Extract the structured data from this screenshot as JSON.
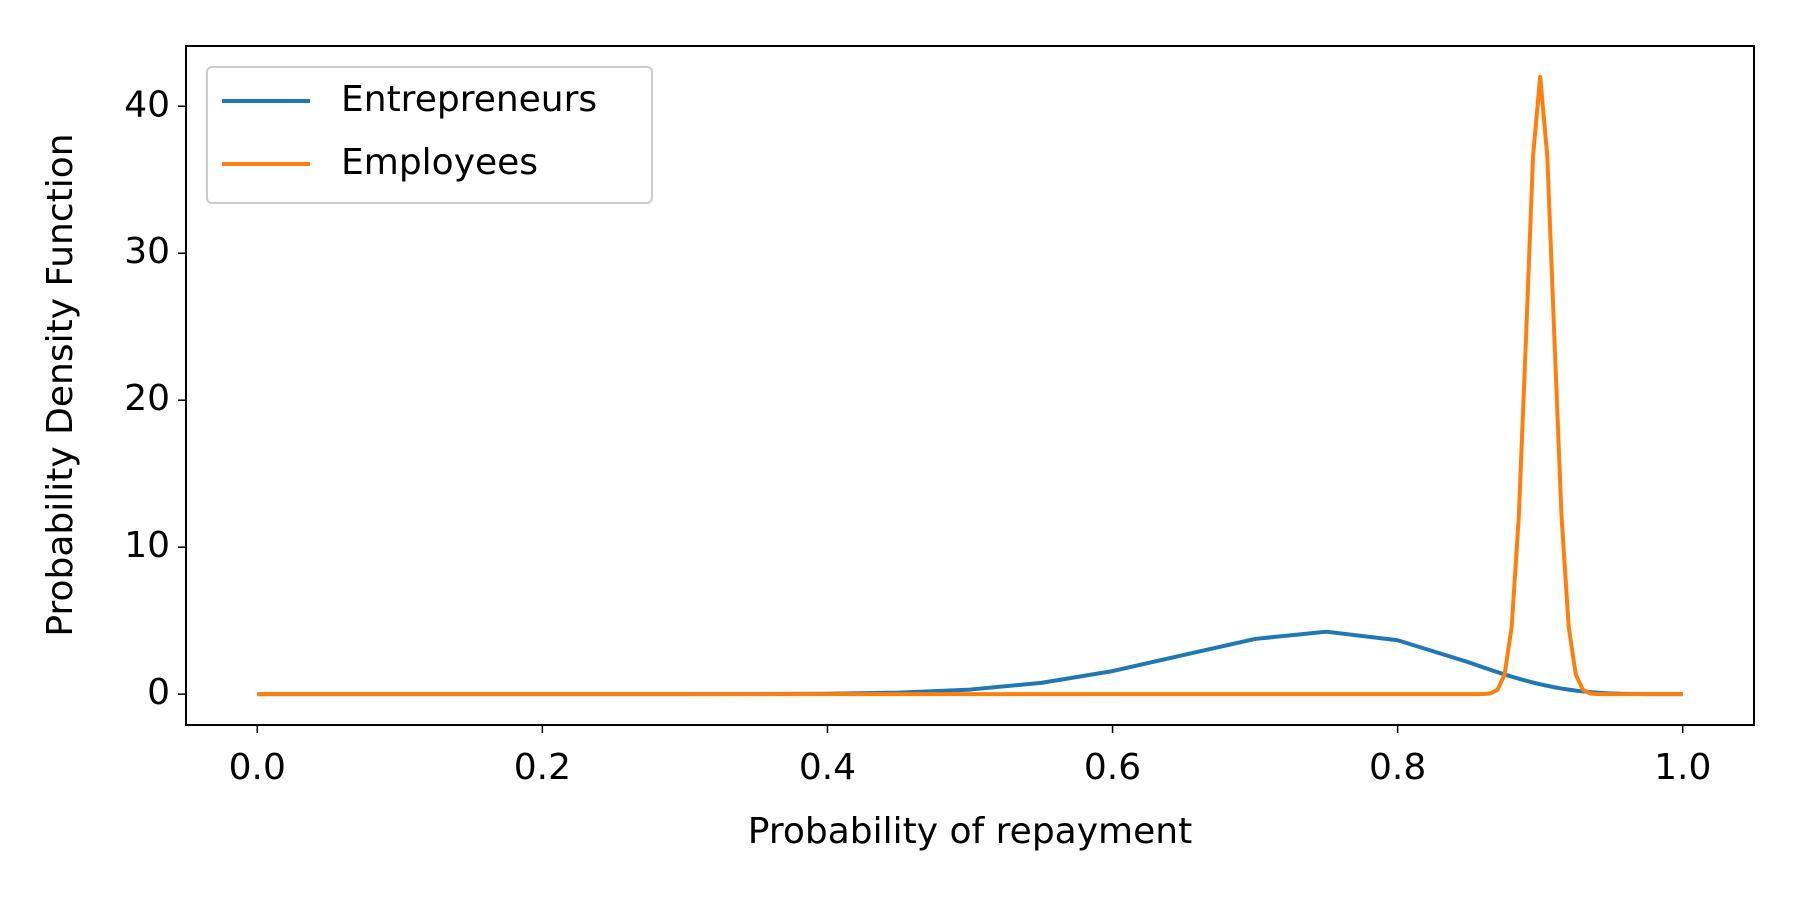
{
  "chart_data": {
    "type": "line",
    "x_label": "Probability of repayment",
    "y_label": "Probability Density Function",
    "x": [
      0,
      0.05,
      0.1,
      0.15,
      0.2,
      0.25,
      0.3,
      0.35,
      0.4,
      0.45,
      0.5,
      0.55,
      0.6,
      0.65,
      0.7,
      0.75,
      0.8,
      0.85,
      0.855,
      0.86,
      0.865,
      0.87,
      0.875,
      0.88,
      0.885,
      0.89,
      0.895,
      0.9,
      0.905,
      0.91,
      0.915,
      0.92,
      0.925,
      0.93,
      0.935,
      0.94,
      0.945,
      0.95,
      0.96,
      0.97,
      0.98,
      0.99,
      1
    ],
    "series": [
      {
        "name": "Entrepreneurs",
        "color": "#1f77b4",
        "values": [
          0,
          0,
          0,
          0,
          0,
          0,
          0.001,
          0.006,
          0.027,
          0.103,
          0.311,
          0.765,
          1.567,
          2.67,
          3.756,
          4.249,
          3.666,
          2.16,
          1.99,
          1.823,
          1.66,
          1.497,
          1.34,
          1.191,
          1.05,
          0.913,
          0.79,
          0.67,
          0.565,
          0.467,
          0.38,
          0.305,
          0.24,
          0.184,
          0.14,
          0.1,
          0.07,
          0.047,
          0.018,
          0.005,
          0.001,
          0,
          0
        ]
      },
      {
        "name": "Employees",
        "color": "#ff7f0e",
        "values": [
          0,
          0,
          0,
          0,
          0,
          0,
          0,
          0,
          0,
          0,
          0,
          0,
          0,
          0,
          0,
          0,
          0,
          0,
          0.001,
          0.006,
          0.047,
          0.288,
          1.32,
          4.58,
          12.06,
          24.1,
          36.6,
          42,
          36.6,
          24.1,
          12.06,
          4.58,
          1.32,
          0.288,
          0.047,
          0.006,
          0.001,
          0,
          0,
          0,
          0,
          0,
          0
        ]
      }
    ],
    "xlim": [
      -0.05,
      1.05
    ],
    "ylim": [
      -2.1,
      44.1
    ],
    "xticks": [
      {
        "value": 0,
        "label": "0.0"
      },
      0.2,
      0.4,
      0.6,
      0.8,
      {
        "value": 1,
        "label": "1.0"
      }
    ],
    "yticks": [
      0,
      10,
      20,
      30,
      40
    ],
    "grid": false,
    "legend": "upper-left"
  }
}
